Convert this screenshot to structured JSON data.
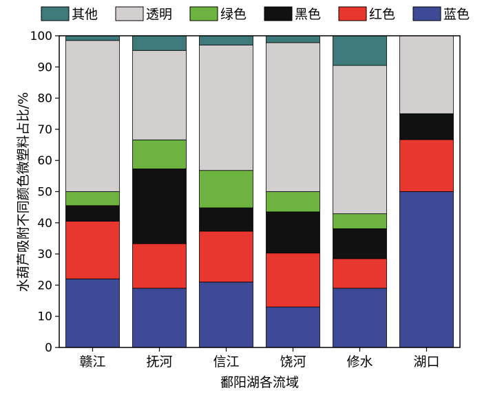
{
  "chart_data": {
    "type": "bar",
    "stacked": true,
    "categories": [
      "赣江",
      "抚河",
      "信江",
      "饶河",
      "修水",
      "湖口"
    ],
    "series": [
      {
        "name": "蓝色",
        "color": "#3f4a96",
        "values": [
          22,
          19,
          21,
          13,
          19,
          50
        ]
      },
      {
        "name": "红色",
        "color": "#e8372f",
        "values": [
          18.5,
          14.3,
          16.3,
          17.3,
          9.5,
          16.7
        ]
      },
      {
        "name": "黑色",
        "color": "#111111",
        "values": [
          5,
          24,
          7.5,
          13.2,
          9.6,
          8.3
        ]
      },
      {
        "name": "绿色",
        "color": "#6db33f",
        "values": [
          4.5,
          9.3,
          12,
          6.5,
          4.8,
          0
        ]
      },
      {
        "name": "透明",
        "color": "#d3cfcf",
        "values": [
          48.5,
          28.7,
          40.2,
          47.8,
          47.6,
          25
        ]
      },
      {
        "name": "其他",
        "color": "#3d7a79",
        "values": [
          1.5,
          4.7,
          3,
          2.2,
          9.5,
          0
        ]
      }
    ],
    "xlabel": "鄱阳湖各流域",
    "ylabel": "水葫芦吸附不同颜色微塑料占比/%",
    "ylim": [
      0,
      100
    ],
    "yticks": [
      0,
      10,
      20,
      30,
      40,
      50,
      60,
      70,
      80,
      90,
      100
    ],
    "legend_order": [
      "其他",
      "透明",
      "绿色",
      "黑色",
      "红色",
      "蓝色"
    ],
    "legend_position": "top",
    "grid": false
  }
}
